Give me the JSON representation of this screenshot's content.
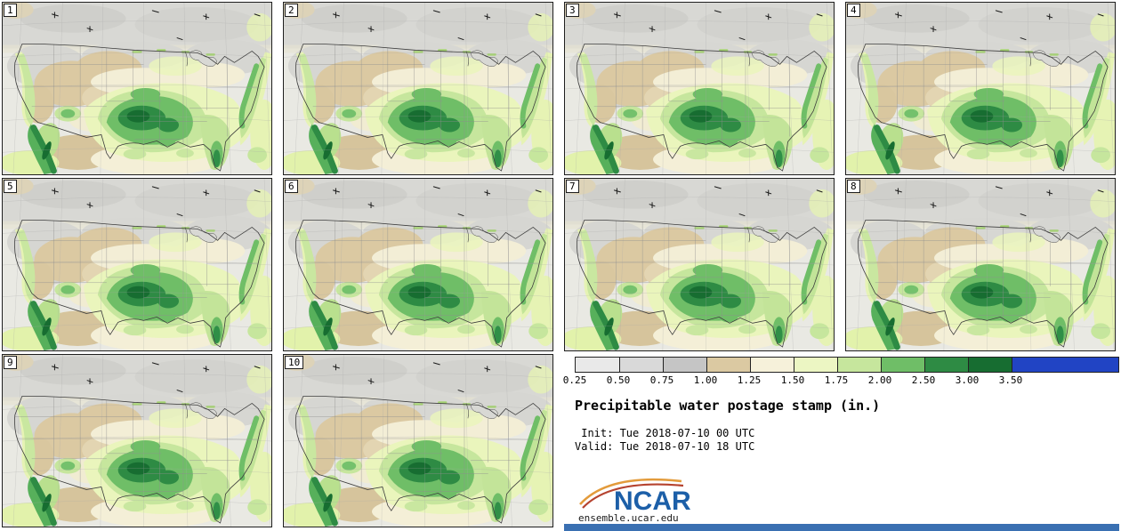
{
  "panels": [
    "1",
    "2",
    "3",
    "4",
    "5",
    "6",
    "7",
    "8",
    "9",
    "10"
  ],
  "colorbar": {
    "tick_labels": [
      "0.25",
      "0.50",
      "0.75",
      "1.00",
      "1.25",
      "1.50",
      "1.75",
      "2.00",
      "2.50",
      "3.00",
      "3.50"
    ],
    "segment_colors": [
      "#e9e9e9",
      "#d9d9d9",
      "#c5c5c5",
      "#dbc9a2",
      "#f6f1da",
      "#ecf6c3",
      "#c6e69d",
      "#6fbe67",
      "#2e8b44",
      "#176d31",
      "#2144c4"
    ]
  },
  "legend": {
    "title": "Precipitable water postage stamp (in.)",
    "init_line": " Init: Tue 2018-07-10 00 UTC",
    "valid_line": "Valid: Tue 2018-07-10 18 UTC"
  },
  "branding": {
    "logo_text": "NCAR",
    "logo_color": "#1c5fa8",
    "url": "ensemble.ucar.edu",
    "footer_bar_color": "#3a70b2"
  }
}
